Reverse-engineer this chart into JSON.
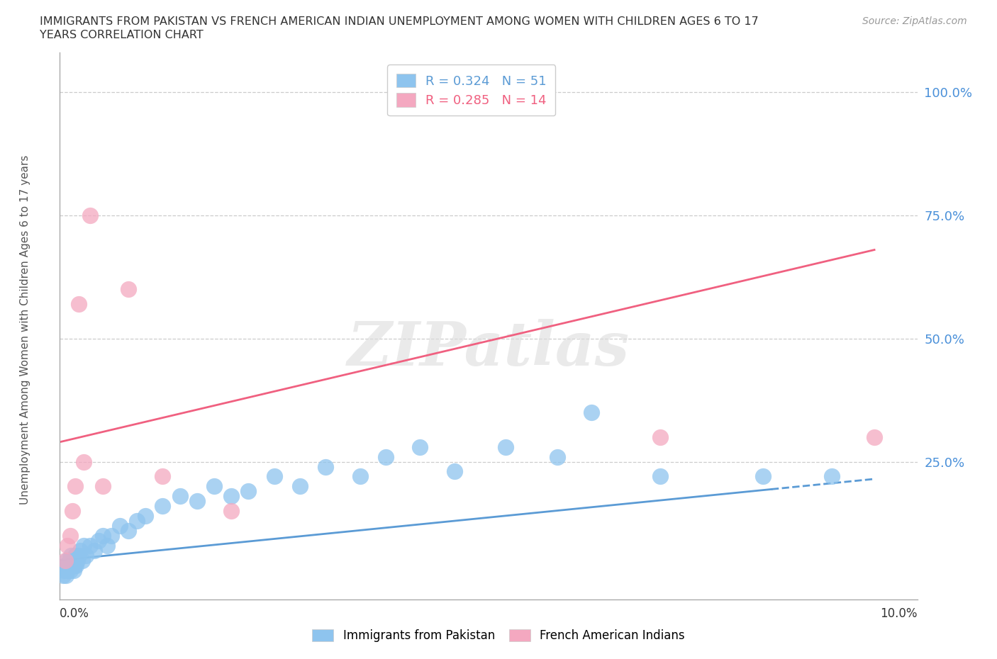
{
  "title_line1": "IMMIGRANTS FROM PAKISTAN VS FRENCH AMERICAN INDIAN UNEMPLOYMENT AMONG WOMEN WITH CHILDREN AGES 6 TO 17",
  "title_line2": "YEARS CORRELATION CHART",
  "source": "Source: ZipAtlas.com",
  "ylabel": "Unemployment Among Women with Children Ages 6 to 17 years",
  "series1_label": "Immigrants from Pakistan",
  "series2_label": "French American Indians",
  "legend_r1": "R = 0.324   N = 51",
  "legend_r2": "R = 0.285   N = 14",
  "series1_color": "#8ec4ee",
  "series2_color": "#f4a8c0",
  "trendline1_color": "#5b9bd5",
  "trendline2_color": "#f06080",
  "watermark": "ZIPatlas",
  "background_color": "#ffffff",
  "grid_color": "#cccccc",
  "title_color": "#333333",
  "axis_label_color": "#555555",
  "ytick_color": "#4a90d9",
  "s1_x": [
    0.04,
    0.05,
    0.06,
    0.07,
    0.08,
    0.09,
    0.1,
    0.11,
    0.12,
    0.13,
    0.14,
    0.15,
    0.16,
    0.17,
    0.18,
    0.19,
    0.2,
    0.22,
    0.24,
    0.26,
    0.28,
    0.3,
    0.35,
    0.4,
    0.45,
    0.5,
    0.55,
    0.6,
    0.7,
    0.8,
    0.9,
    1.0,
    1.2,
    1.4,
    1.6,
    1.8,
    2.0,
    2.2,
    2.5,
    2.8,
    3.1,
    3.5,
    3.8,
    4.2,
    4.6,
    5.2,
    5.8,
    6.2,
    7.0,
    8.2,
    9.0
  ],
  "s1_y": [
    2,
    3,
    4,
    2,
    5,
    3,
    4,
    5,
    3,
    6,
    4,
    5,
    3,
    4,
    6,
    4,
    5,
    6,
    7,
    5,
    8,
    6,
    8,
    7,
    9,
    10,
    8,
    10,
    12,
    11,
    13,
    14,
    16,
    18,
    17,
    20,
    18,
    19,
    22,
    20,
    24,
    22,
    26,
    28,
    23,
    28,
    26,
    35,
    22,
    22,
    22
  ],
  "s2_x": [
    0.06,
    0.09,
    0.12,
    0.15,
    0.18,
    0.22,
    0.28,
    0.35,
    0.5,
    0.8,
    1.2,
    2.0,
    7.0,
    9.5
  ],
  "s2_y": [
    5,
    8,
    10,
    15,
    20,
    57,
    25,
    75,
    20,
    60,
    22,
    15,
    30,
    30
  ],
  "tl1_x0": 0.0,
  "tl1_x1": 9.5,
  "tl1_y0": 5.0,
  "tl1_y1": 21.5,
  "tl1_solid_end": 8.3,
  "tl2_x0": 0.0,
  "tl2_x1": 9.5,
  "tl2_y0": 29.0,
  "tl2_y1": 68.0,
  "xlim": [
    0.0,
    10.0
  ],
  "ylim": [
    -3.0,
    108.0
  ],
  "yticks": [
    0,
    25,
    50,
    75,
    100
  ],
  "ytick_labels": [
    "",
    "25.0%",
    "50.0%",
    "75.0%",
    "100.0%"
  ]
}
